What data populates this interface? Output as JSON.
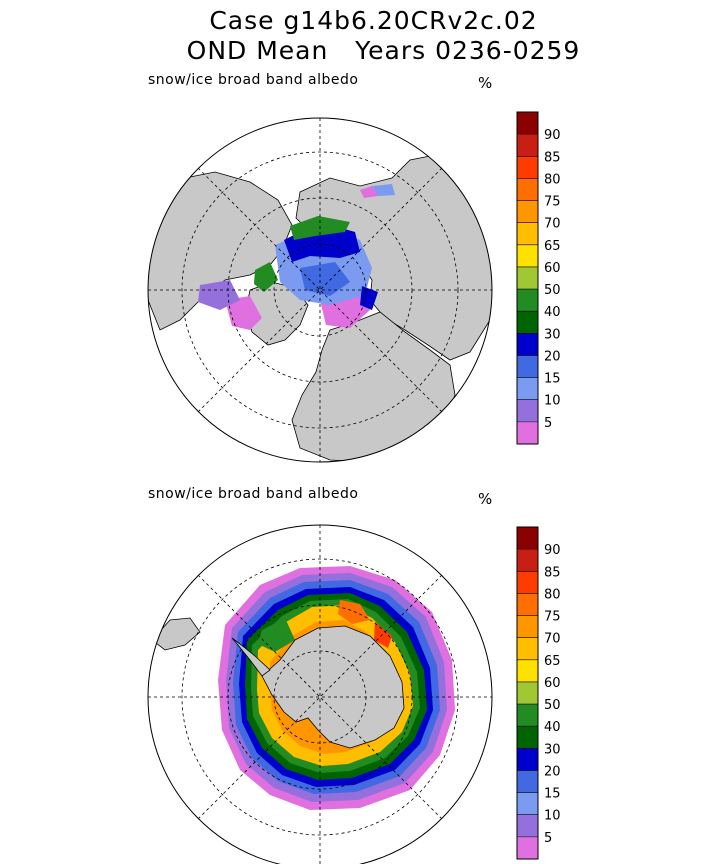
{
  "title": {
    "line1": "Case g14b6.20CRv2c.02",
    "line2": "OND Mean   Years 0236-0259"
  },
  "panels": [
    {
      "id": "north",
      "variable": "snow/ice broad band albedo",
      "unit": "%",
      "hemisphere": "Northern"
    },
    {
      "id": "south",
      "variable": "snow/ice broad band albedo",
      "unit": "%",
      "hemisphere": "Southern"
    }
  ],
  "colorbar": {
    "ticks": [
      "90",
      "85",
      "80",
      "75",
      "70",
      "65",
      "60",
      "50",
      "40",
      "30",
      "20",
      "15",
      "10",
      "5"
    ],
    "colors": [
      "#8b0000",
      "#c81e14",
      "#ff3c00",
      "#ff6e00",
      "#ff9600",
      "#ffbe00",
      "#ffe100",
      "#a0c832",
      "#228b22",
      "#006400",
      "#0000cd",
      "#4169e1",
      "#7b9bf0",
      "#9370db",
      "#e070e0"
    ]
  },
  "colors": {
    "land": "#c8c8c8",
    "ocean": "#ffffff"
  }
}
